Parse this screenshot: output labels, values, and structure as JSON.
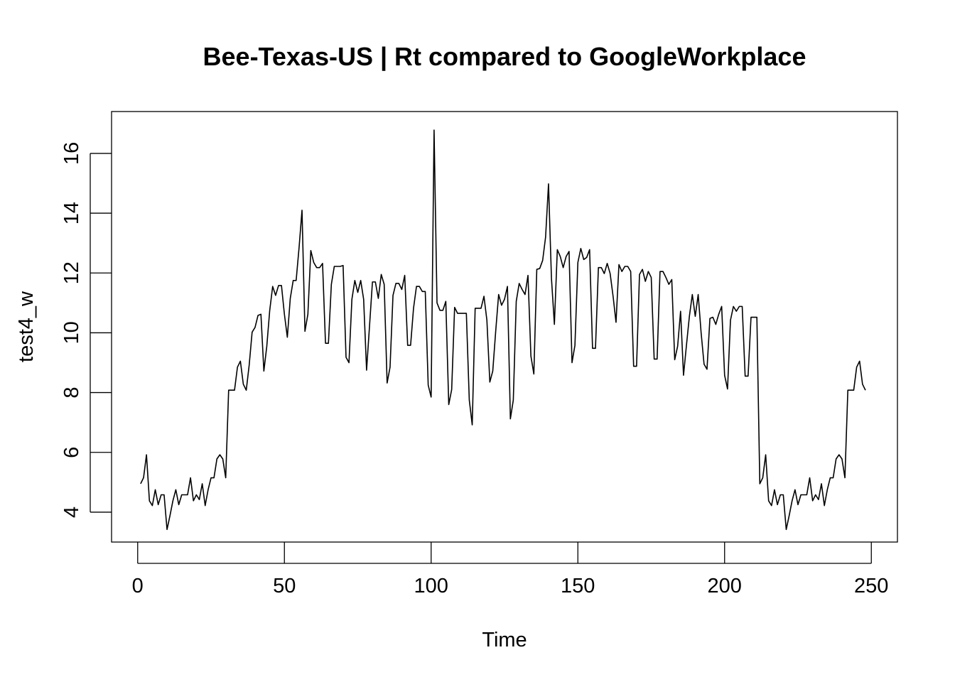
{
  "chart_data": {
    "type": "line",
    "title": "Bee-Texas-US | Rt compared to GoogleWorkplace",
    "xlabel": "Time",
    "ylabel": "test4_w",
    "xlim": [
      -8.9,
      258.9
    ],
    "ylim": [
      3.0,
      17.4
    ],
    "x_ticks": [
      0,
      50,
      100,
      150,
      200,
      250
    ],
    "x_tick_labels": [
      "0",
      "50",
      "100",
      "150",
      "200",
      "250"
    ],
    "y_ticks": [
      4,
      6,
      8,
      10,
      12,
      14,
      16
    ],
    "y_tick_labels": [
      "4",
      "6",
      "8",
      "10",
      "12",
      "14",
      "16"
    ],
    "grid": false,
    "line_color": "#000000",
    "series": [
      {
        "x_start": 1,
        "values": [
          4.95,
          5.15,
          5.92,
          4.38,
          4.22,
          4.75,
          4.25,
          4.58,
          4.58,
          3.42,
          3.88,
          4.38,
          4.75,
          4.25,
          4.58,
          4.58,
          4.58,
          5.15,
          4.38,
          4.58,
          4.42,
          4.95,
          4.22,
          4.75,
          5.15,
          5.15,
          5.78,
          5.92,
          5.78,
          5.15,
          8.08,
          8.08,
          8.08,
          8.85,
          9.05,
          8.28,
          8.08,
          8.92,
          10.02,
          10.18,
          10.58,
          10.62,
          8.72,
          9.55,
          10.75,
          11.55,
          11.25,
          11.58,
          11.58,
          10.62,
          9.85,
          11.15,
          11.75,
          11.75,
          12.85,
          14.1,
          10.05,
          10.62,
          12.75,
          12.35,
          12.18,
          12.18,
          12.32,
          9.65,
          9.65,
          11.62,
          12.22,
          12.22,
          12.22,
          12.25,
          9.18,
          9.0,
          11.12,
          11.75,
          11.35,
          11.75,
          11.12,
          8.75,
          10.22,
          11.7,
          11.7,
          11.15,
          11.95,
          11.62,
          8.32,
          8.85,
          11.25,
          11.65,
          11.65,
          11.45,
          11.92,
          9.58,
          9.58,
          10.82,
          11.55,
          11.55,
          11.38,
          11.38,
          8.25,
          7.85,
          16.78,
          11.0,
          10.75,
          10.75,
          11.05,
          7.6,
          8.1,
          10.85,
          10.65,
          10.65,
          10.65,
          10.65,
          7.75,
          6.92,
          10.82,
          10.82,
          10.82,
          11.22,
          10.42,
          8.35,
          8.72,
          10.05,
          11.28,
          10.92,
          11.12,
          11.55,
          7.12,
          7.75,
          11.05,
          11.65,
          11.45,
          11.28,
          11.92,
          9.22,
          8.62,
          12.12,
          12.15,
          12.42,
          13.2,
          14.98,
          11.82,
          10.28,
          12.78,
          12.55,
          12.18,
          12.55,
          12.72,
          9.0,
          9.58,
          12.35,
          12.82,
          12.45,
          12.52,
          12.78,
          9.48,
          9.48,
          12.18,
          12.18,
          11.98,
          12.32,
          11.98,
          11.22,
          10.35,
          12.28,
          12.05,
          12.22,
          12.22,
          12.05,
          8.88,
          8.88,
          11.95,
          12.12,
          11.72,
          12.05,
          11.85,
          9.12,
          9.12,
          12.05,
          12.05,
          11.85,
          11.62,
          11.78,
          9.1,
          9.55,
          10.72,
          8.58,
          9.58,
          10.55,
          11.28,
          10.55,
          11.28,
          10.0,
          8.95,
          8.78,
          10.48,
          10.52,
          10.28,
          10.62,
          10.88,
          8.58,
          8.12,
          10.42,
          10.88,
          10.72,
          10.88,
          10.88,
          8.55,
          8.55,
          10.52,
          10.52,
          10.52,
          4.95,
          5.15,
          5.92,
          4.38,
          4.22,
          4.75,
          4.25,
          4.58,
          4.58,
          3.42,
          3.88,
          4.38,
          4.75,
          4.25,
          4.58,
          4.58,
          4.58,
          5.15,
          4.38,
          4.58,
          4.42,
          4.95,
          4.22,
          4.75,
          5.15,
          5.15,
          5.78,
          5.92,
          5.78,
          5.15,
          8.08,
          8.08,
          8.08,
          8.85,
          9.05,
          8.28,
          8.08
        ]
      }
    ]
  }
}
